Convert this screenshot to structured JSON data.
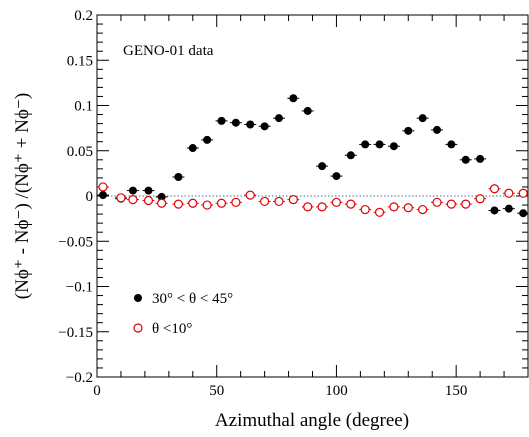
{
  "chart_data": {
    "type": "scatter",
    "xlabel": "Azimuthal angle (degree)",
    "ylabel": "(Nϕ⁺ - Nϕ⁻) /(Nϕ⁺ + Nϕ⁻)",
    "xlim": [
      0,
      180
    ],
    "ylim": [
      -0.2,
      0.2
    ],
    "x_ticks": [
      0,
      50,
      100,
      150
    ],
    "y_ticks": [
      -0.2,
      -0.15,
      -0.1,
      -0.05,
      0,
      0.05,
      0.1,
      0.15,
      0.2
    ],
    "y_tick_labels": [
      "−0.2",
      "−0.15",
      "−0.1",
      "−0.05",
      "0",
      "0.05",
      "0.1",
      "0.15",
      "0.2"
    ],
    "annotation": "GENO-01 data",
    "reference_line_y": 0,
    "x_half_width": 2.5,
    "series": [
      {
        "name": "30° < θ < 45°",
        "marker": "filled-circle",
        "color": "#000000",
        "x": [
          2.5,
          10,
          15,
          21.5,
          27,
          34,
          40,
          46,
          52,
          58,
          64,
          70,
          76,
          82,
          88,
          94,
          100,
          106,
          112,
          118,
          124,
          130,
          136,
          142,
          148,
          154,
          160,
          166,
          172,
          178
        ],
        "y": [
          0.001,
          -0.003,
          0.006,
          0.006,
          -0.001,
          0.021,
          0.053,
          0.062,
          0.083,
          0.081,
          0.079,
          0.077,
          0.086,
          0.108,
          0.094,
          0.033,
          0.022,
          0.045,
          0.057,
          0.057,
          0.055,
          0.072,
          0.086,
          0.073,
          0.057,
          0.04,
          0.041,
          -0.016,
          -0.014,
          -0.019
        ]
      },
      {
        "name": "θ <10°",
        "marker": "open-circle",
        "color": "#e00000",
        "x": [
          2.5,
          10,
          15,
          21.5,
          27,
          34,
          40,
          46,
          52,
          58,
          64,
          70,
          76,
          82,
          88,
          94,
          100,
          106,
          112,
          118,
          124,
          130,
          136,
          142,
          148,
          154,
          160,
          166,
          172,
          178
        ],
        "y": [
          0.01,
          -0.002,
          -0.004,
          -0.005,
          -0.008,
          -0.009,
          -0.008,
          -0.01,
          -0.008,
          -0.007,
          0.001,
          -0.006,
          -0.006,
          -0.004,
          -0.012,
          -0.012,
          -0.007,
          -0.009,
          -0.015,
          -0.018,
          -0.012,
          -0.013,
          -0.015,
          -0.007,
          -0.009,
          -0.009,
          -0.003,
          0.008,
          0.003,
          0.003
        ]
      }
    ]
  }
}
